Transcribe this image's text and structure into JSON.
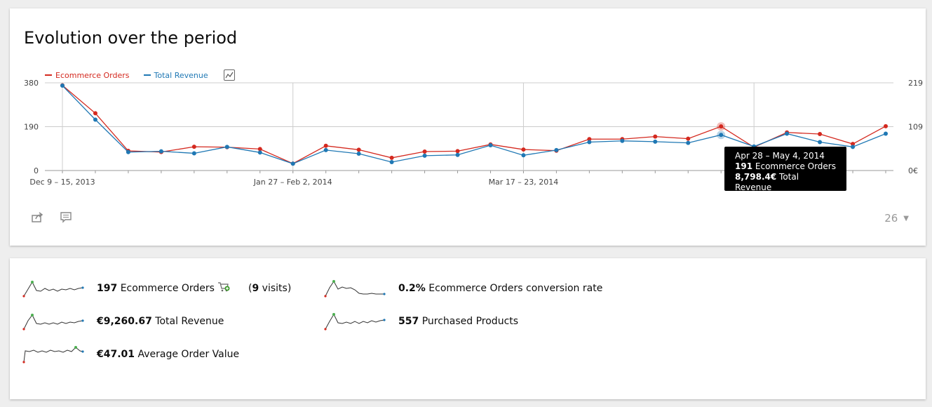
{
  "evolution": {
    "title": "Evolution over the period",
    "limit_value": "26",
    "legend": [
      {
        "label": "Ecommerce Orders",
        "color": "#d4291f"
      },
      {
        "label": "Total Revenue",
        "color": "#1f78b4"
      }
    ],
    "tooltip": {
      "period": "Apr 28 – May 4, 2014",
      "orders_value": "191",
      "orders_label": "Ecommerce Orders",
      "revenue_value": "8,798.4€",
      "revenue_label": "Total Revenue"
    }
  },
  "chart_data": {
    "type": "line",
    "x_tick_labels": [
      "Dec 9 – 15, 2013",
      "Jan 27 – Feb 2, 2014",
      "Mar 17 – 23, 2014"
    ],
    "y_left_ticks": [
      "380",
      "190",
      "0"
    ],
    "y_right_ticks": [
      "219",
      "109",
      "0€"
    ],
    "ylim_left": [
      0,
      380
    ],
    "ylim_right": [
      0,
      219
    ],
    "series": [
      {
        "name": "Ecommerce Orders",
        "axis": "left",
        "color": "#d4291f",
        "values": [
          369,
          248,
          85,
          80,
          103,
          101,
          93,
          30,
          107,
          90,
          55,
          82,
          84,
          113,
          91,
          86,
          136,
          136,
          147,
          138,
          191,
          101,
          165,
          158,
          115,
          192
        ]
      },
      {
        "name": "Total Revenue",
        "axis": "right",
        "color": "#1f78b4",
        "values": [
          212,
          127,
          46,
          48,
          43,
          59,
          45,
          17,
          51,
          42,
          21,
          37,
          39,
          63,
          38,
          51,
          71,
          74,
          72,
          69,
          89,
          60,
          92,
          71,
          59,
          92
        ]
      }
    ],
    "highlight_index": 20
  },
  "sparklines": {
    "orders_value": "197",
    "orders_label": "Ecommerce Orders",
    "orders_visits_value": "9",
    "orders_visits_label": "visits",
    "revenue_value": "€9,260.67",
    "revenue_label": "Total Revenue",
    "aov_value": "€47.01",
    "aov_label": "Average Order Value",
    "conv_value": "0.2%",
    "conv_label": "Ecommerce Orders conversion rate",
    "products_value": "557",
    "products_label": "Purchased Products"
  }
}
